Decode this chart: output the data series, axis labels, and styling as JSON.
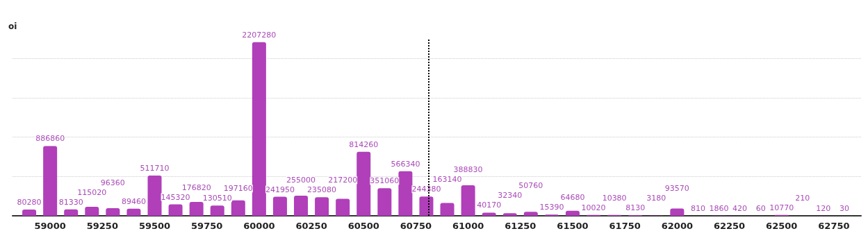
{
  "chart_data": {
    "type": "bar",
    "ylabel": "oi",
    "x": [
      58900,
      59000,
      59100,
      59200,
      59300,
      59400,
      59500,
      59600,
      59700,
      59800,
      59900,
      60000,
      60100,
      60200,
      60300,
      60400,
      60500,
      60600,
      60700,
      60800,
      60900,
      61000,
      61100,
      61200,
      61300,
      61400,
      61500,
      61600,
      61700,
      61800,
      61900,
      62000,
      62100,
      62200,
      62300,
      62400,
      62500,
      62600,
      62700,
      62800
    ],
    "values": [
      80280,
      886860,
      81330,
      115020,
      96360,
      89460,
      511710,
      145320,
      176820,
      130510,
      197160,
      2207280,
      241950,
      255000,
      235080,
      217200,
      814260,
      351060,
      566340,
      244380,
      163140,
      388830,
      40170,
      32340,
      50760,
      15390,
      64680,
      10020,
      10380,
      8130,
      3180,
      93570,
      810,
      1860,
      420,
      60,
      10770,
      210,
      120,
      30
    ],
    "color": "#b03fb9",
    "data_labels": true,
    "xlim": [
      58820,
      62880
    ],
    "xticks": [
      59000,
      59250,
      59500,
      59750,
      60000,
      60250,
      60500,
      60750,
      61000,
      61250,
      61500,
      61750,
      62000,
      62250,
      62500,
      62750
    ],
    "ylim": [
      0,
      2250000
    ],
    "yticks": [
      {
        "value": 0,
        "label": null
      },
      {
        "value": 500000,
        "label": null
      },
      {
        "value": 1000000,
        "label": null
      },
      {
        "value": 1500000,
        "label": null
      },
      {
        "value": 2000000,
        "label": null
      }
    ],
    "grid": "y",
    "ref_lines": [
      {
        "axis": "x",
        "value": 60810,
        "color": "#000000",
        "line_style": "dotted"
      }
    ]
  }
}
